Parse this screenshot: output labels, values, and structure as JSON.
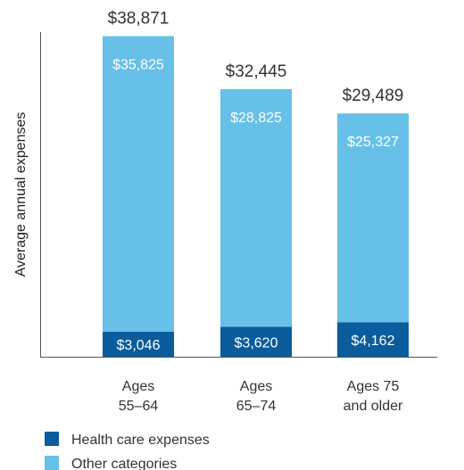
{
  "chart_data": {
    "type": "bar",
    "stacked": true,
    "ylabel": "Average annual expenses",
    "categories": [
      [
        "Ages",
        "55–64"
      ],
      [
        "Ages",
        "65–74"
      ],
      [
        "Ages 75",
        "and older"
      ]
    ],
    "series": [
      {
        "name": "Health care expenses",
        "color": "#0a5c9c",
        "values": [
          3046,
          3620,
          4162
        ],
        "labels": [
          "$3,046",
          "$3,620",
          "$4,162"
        ]
      },
      {
        "name": "Other categories",
        "color": "#66c0e8",
        "values": [
          35825,
          28825,
          25327
        ],
        "labels": [
          "$35,825",
          "$28,825",
          "$25,327"
        ]
      }
    ],
    "totals": [
      38871,
      32445,
      29489
    ],
    "total_labels": [
      "$38,871",
      "$32,445",
      "$29,489"
    ],
    "ylim": [
      0,
      40000
    ],
    "grid": false,
    "legend_position": "bottom-left"
  }
}
